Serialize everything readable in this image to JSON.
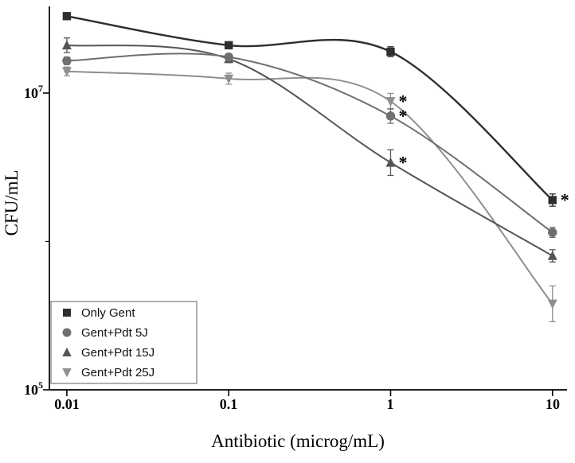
{
  "chart_data": {
    "type": "line",
    "xlabel": "Antibiotic (microg/mL)",
    "ylabel": "CFU/mL",
    "xscale": "log",
    "yscale": "log",
    "grid": false,
    "legend_position": "bottom-left",
    "x": [
      0.01,
      0.1,
      1,
      10
    ],
    "xlim": [
      0.0078,
      12.3
    ],
    "ylim": [
      100000,
      38400000
    ],
    "xticks": [
      {
        "value": 0.01,
        "label": "0.01"
      },
      {
        "value": 0.1,
        "label": "0.1"
      },
      {
        "value": 1,
        "label": "1"
      },
      {
        "value": 10,
        "label": "10"
      }
    ],
    "yticks": [
      {
        "value": 100000,
        "base": "10",
        "exp": "5"
      },
      {
        "value": 10000000,
        "base": "10",
        "exp": "7"
      }
    ],
    "yminorticks": [
      1000000
    ],
    "series": [
      {
        "name": "Only Gent",
        "marker": "square",
        "color": "#2e2e2e",
        "values": [
          33000000,
          21000000,
          19000000,
          1900000
        ],
        "yerr_factor": [
          1.04,
          1.05,
          1.08,
          1.1
        ],
        "annotations": [
          null,
          null,
          null,
          "*"
        ]
      },
      {
        "name": "Gent+Pdt 5J",
        "marker": "circle",
        "color": "#6f6f6f",
        "values": [
          16500000,
          17500000,
          7000000,
          1150000
        ],
        "yerr_factor": [
          1.06,
          1.05,
          1.12,
          1.08
        ],
        "annotations": [
          null,
          null,
          "*",
          null
        ]
      },
      {
        "name": "Gent+Pdt 15J",
        "marker": "triangle-up",
        "color": "#555555",
        "values": [
          21000000,
          17000000,
          3400000,
          800000
        ],
        "yerr_factor": [
          1.12,
          1.06,
          1.22,
          1.1
        ],
        "annotations": [
          null,
          null,
          "*",
          null
        ]
      },
      {
        "name": "Gent+Pdt 25J",
        "marker": "triangle-down",
        "color": "#8f8f8f",
        "values": [
          14000000,
          12500000,
          8800000,
          380000
        ],
        "yerr_factor": [
          1.07,
          1.09,
          1.13,
          1.32
        ],
        "annotations": [
          null,
          null,
          "*",
          null
        ]
      }
    ]
  }
}
